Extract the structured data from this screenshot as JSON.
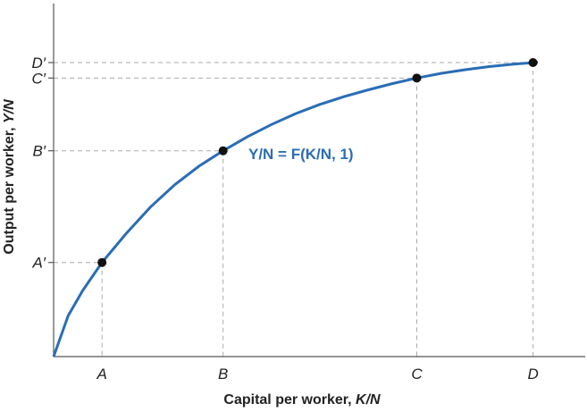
{
  "chart_data": {
    "type": "line",
    "title": "",
    "xlabel": {
      "main": "Capital per worker, ",
      "italic": "K/N"
    },
    "ylabel": {
      "main": "Output per worker, ",
      "italic": "Y/N"
    },
    "curve_label": "Y/N = F(K/N, 1)",
    "curve_color": "#2a6db5",
    "xlim": [
      0,
      10
    ],
    "ylim": [
      0,
      10
    ],
    "series": [
      {
        "values_x": [
          0,
          0.3,
          0.6,
          1,
          1.5,
          2,
          2.5,
          3,
          3.5,
          4,
          4.5,
          5,
          5.5,
          6,
          6.5,
          7,
          7.5,
          8,
          8.5,
          9,
          9.5,
          10
        ],
        "values_y": [
          0,
          1.32,
          2.13,
          3.04,
          3.98,
          4.83,
          5.55,
          6.15,
          6.65,
          7.1,
          7.5,
          7.85,
          8.15,
          8.4,
          8.62,
          8.82,
          9.0,
          9.15,
          9.27,
          9.37,
          9.45,
          9.51
        ]
      }
    ],
    "points": [
      {
        "x": 1,
        "y": 3.04,
        "xlabel": "A",
        "ylabel": "A′"
      },
      {
        "x": 3.5,
        "y": 6.65,
        "xlabel": "B",
        "ylabel": "B′"
      },
      {
        "x": 7.5,
        "y": 9.0,
        "xlabel": "C",
        "ylabel": "C′"
      },
      {
        "x": 9.9,
        "y": 9.5,
        "xlabel": "D",
        "ylabel": "D′"
      }
    ],
    "grid": false
  }
}
